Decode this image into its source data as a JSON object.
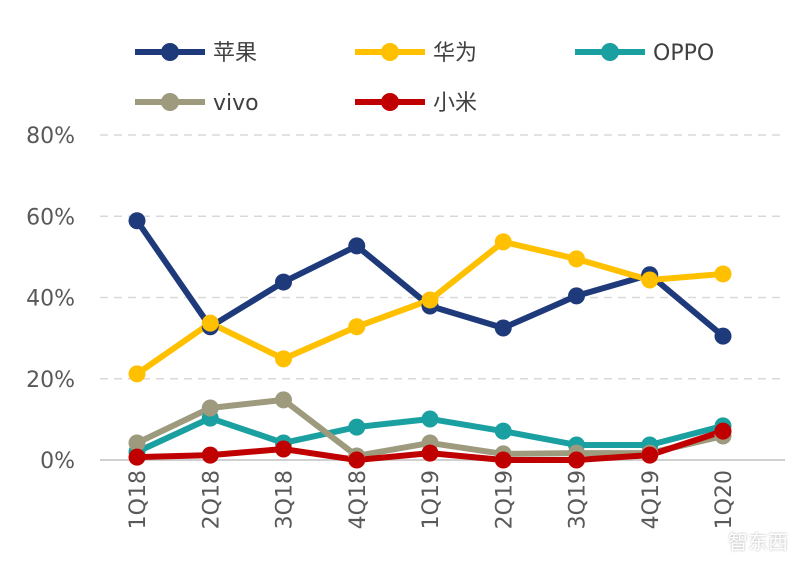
{
  "chart_data": {
    "type": "line",
    "title": "",
    "xlabel": "",
    "ylabel": "",
    "categories": [
      "1Q18",
      "2Q18",
      "3Q18",
      "4Q18",
      "1Q19",
      "2Q19",
      "3Q19",
      "4Q19",
      "1Q20"
    ],
    "ylim": [
      0,
      80
    ],
    "yticks": [
      "0%",
      "20%",
      "40%",
      "60%",
      "80%"
    ],
    "ytick_values": [
      0,
      20,
      40,
      60,
      80
    ],
    "grid": true,
    "legend_placement": "top",
    "series": [
      {
        "name": "苹果",
        "color": "#1f3a7a",
        "values": [
          58.9,
          32.8,
          43.8,
          52.7,
          37.9,
          32.5,
          40.4,
          45.6,
          30.5
        ]
      },
      {
        "name": "华为",
        "color": "#ffc000",
        "values": [
          21.2,
          33.7,
          24.9,
          32.8,
          39.4,
          53.7,
          49.5,
          44.3,
          45.8
        ]
      },
      {
        "name": "OPPO",
        "color": "#1aa0a0",
        "values": [
          2.0,
          10.3,
          4.2,
          8.1,
          10.1,
          7.1,
          3.7,
          3.7,
          8.4
        ]
      },
      {
        "name": "vivo",
        "color": "#9e9a7e",
        "values": [
          4.2,
          12.8,
          14.8,
          1.0,
          4.2,
          1.5,
          1.7,
          1.7,
          5.9
        ]
      },
      {
        "name": "小米",
        "color": "#c00000",
        "values": [
          0.7,
          1.2,
          2.7,
          0.0,
          1.7,
          0.0,
          0.0,
          1.2,
          7.1
        ]
      }
    ]
  },
  "watermark": "智东西"
}
